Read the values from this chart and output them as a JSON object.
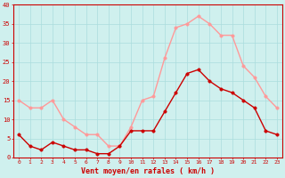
{
  "x": [
    0,
    1,
    2,
    3,
    4,
    5,
    6,
    7,
    8,
    9,
    10,
    11,
    12,
    13,
    14,
    15,
    16,
    17,
    18,
    19,
    20,
    21,
    22,
    23
  ],
  "moyen": [
    6,
    3,
    2,
    4,
    3,
    2,
    2,
    1,
    1,
    3,
    7,
    7,
    7,
    12,
    17,
    22,
    23,
    20,
    18,
    17,
    15,
    13,
    7,
    6
  ],
  "rafales": [
    15,
    13,
    13,
    15,
    10,
    8,
    6,
    6,
    3,
    3,
    8,
    15,
    16,
    26,
    34,
    35,
    37,
    35,
    32,
    32,
    24,
    21,
    16,
    13
  ],
  "moyen_color": "#cc0000",
  "rafales_color": "#ff9999",
  "bg_color": "#cff0ee",
  "grid_color": "#aadddd",
  "xlabel": "Vent moyen/en rafales ( km/h )",
  "ylim": [
    0,
    40
  ],
  "yticks": [
    0,
    5,
    10,
    15,
    20,
    25,
    30,
    35,
    40
  ],
  "ytick_labels": [
    "0",
    "5",
    "10",
    "15",
    "20",
    "25",
    "30",
    "35",
    "40"
  ],
  "line_width": 1.0,
  "marker_size": 2.5
}
